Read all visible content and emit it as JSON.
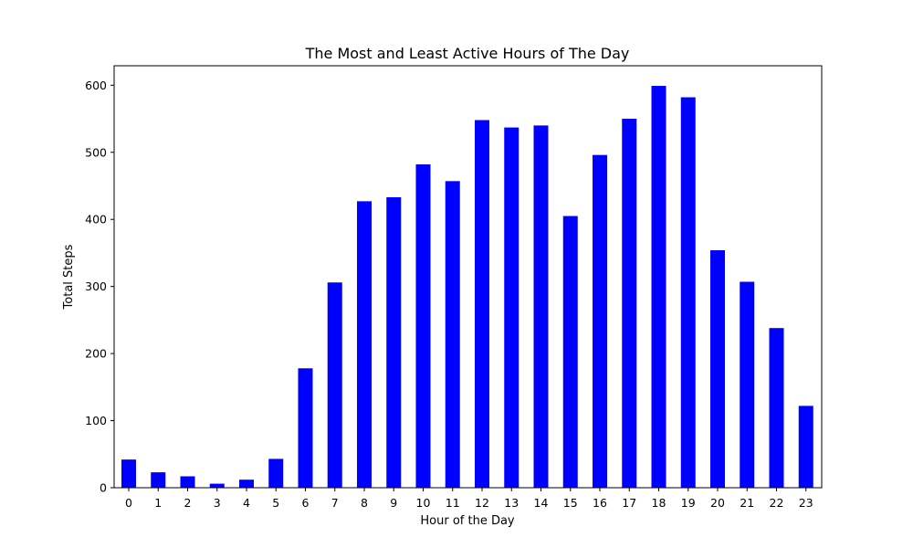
{
  "chart_data": {
    "type": "bar",
    "title": "The Most and Least Active Hours of The Day",
    "xlabel": "Hour of the Day",
    "ylabel": "Total Steps",
    "categories": [
      "0",
      "1",
      "2",
      "3",
      "4",
      "5",
      "6",
      "7",
      "8",
      "9",
      "10",
      "11",
      "12",
      "13",
      "14",
      "15",
      "16",
      "17",
      "18",
      "19",
      "20",
      "21",
      "22",
      "23"
    ],
    "values": [
      42,
      23,
      17,
      6,
      12,
      43,
      178,
      306,
      427,
      433,
      482,
      457,
      548,
      537,
      540,
      405,
      496,
      550,
      599,
      582,
      354,
      307,
      238,
      122
    ],
    "ylim": [
      0,
      629
    ],
    "yticks": [
      0,
      100,
      200,
      300,
      400,
      500,
      600
    ],
    "grid": false,
    "legend": "none",
    "bar_color": "#0000ff"
  }
}
